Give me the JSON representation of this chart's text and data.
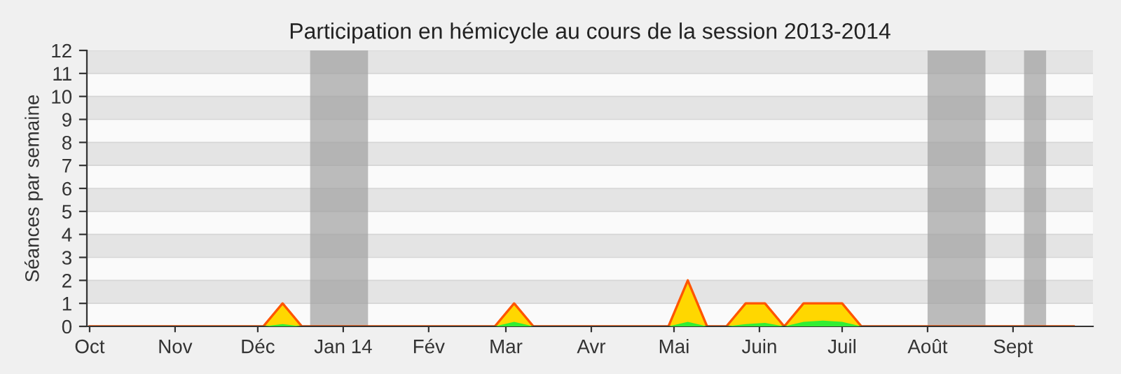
{
  "chart_data": {
    "type": "area",
    "title": "Participation en hémicycle au cours de la session 2013-2014",
    "ylabel": "Séances par semaine",
    "x": [
      "2013-10-01",
      "2013-10-08",
      "2013-10-15",
      "2013-10-22",
      "2013-10-29",
      "2013-11-05",
      "2013-11-12",
      "2013-11-19",
      "2013-11-26",
      "2013-12-03",
      "2013-12-10",
      "2013-12-17",
      "2013-12-24",
      "2013-12-31",
      "2014-01-07",
      "2014-01-14",
      "2014-01-21",
      "2014-01-28",
      "2014-02-04",
      "2014-02-11",
      "2014-02-18",
      "2014-02-25",
      "2014-03-04",
      "2014-03-11",
      "2014-03-18",
      "2014-03-25",
      "2014-04-01",
      "2014-04-08",
      "2014-04-15",
      "2014-04-22",
      "2014-04-29",
      "2014-05-06",
      "2014-05-13",
      "2014-05-20",
      "2014-05-27",
      "2014-06-03",
      "2014-06-10",
      "2014-06-17",
      "2014-06-24",
      "2014-07-01",
      "2014-07-08",
      "2014-07-15",
      "2014-07-22",
      "2014-07-29",
      "2014-08-05",
      "2014-08-12",
      "2014-08-19",
      "2014-08-26",
      "2014-09-02",
      "2014-09-09",
      "2014-09-16",
      "2014-09-23"
    ],
    "series": [
      {
        "color": "#ffd700",
        "values": [
          0,
          0,
          0,
          0,
          0,
          0,
          0,
          0,
          0,
          0,
          1,
          0,
          0,
          0,
          0,
          0,
          0,
          0,
          0,
          0,
          0,
          0,
          1,
          0,
          0,
          0,
          0,
          0,
          0,
          0,
          0,
          2,
          0,
          0,
          1,
          1,
          0,
          1,
          1,
          1,
          0,
          0,
          0,
          0,
          0,
          0,
          0,
          0,
          0,
          0,
          0,
          0
        ]
      },
      {
        "color": "#33ee33",
        "values": [
          0,
          0,
          0,
          0,
          0,
          0,
          0,
          0,
          0,
          0,
          0.1,
          0,
          0,
          0,
          0,
          0,
          0,
          0,
          0,
          0,
          0,
          0,
          0.2,
          0,
          0,
          0,
          0,
          0,
          0,
          0,
          0,
          0.2,
          0,
          0,
          0.1,
          0.15,
          0,
          0.2,
          0.25,
          0.2,
          0,
          0,
          0,
          0,
          0,
          0,
          0,
          0,
          0,
          0,
          0,
          0
        ]
      }
    ],
    "bands": [
      {
        "axis": "x",
        "from": "2013-12-20",
        "to": "2014-01-10",
        "color": "#a0a0a0"
      },
      {
        "axis": "x",
        "from": "2014-08-01",
        "to": "2014-08-22",
        "color": "#a0a0a0"
      },
      {
        "axis": "x",
        "from": "2014-09-05",
        "to": "2014-09-13",
        "color": "#a0a0a0"
      }
    ],
    "xlim": [
      "2013-09-30",
      "2014-09-30"
    ],
    "xticks": [
      {
        "value": "2013-10-01",
        "label": "Oct"
      },
      {
        "value": "2013-11-01",
        "label": "Nov"
      },
      {
        "value": "2013-12-01",
        "label": "Déc"
      },
      {
        "value": "2014-01-01",
        "label": "Jan 14"
      },
      {
        "value": "2014-02-01",
        "label": "Fév"
      },
      {
        "value": "2014-03-01",
        "label": "Mar"
      },
      {
        "value": "2014-04-01",
        "label": "Avr"
      },
      {
        "value": "2014-05-01",
        "label": "Mai"
      },
      {
        "value": "2014-06-01",
        "label": "Juin"
      },
      {
        "value": "2014-07-01",
        "label": "Juil"
      },
      {
        "value": "2014-08-01",
        "label": "Août"
      },
      {
        "value": "2014-09-01",
        "label": "Sept"
      }
    ],
    "ylim": [
      0,
      12
    ],
    "yticks": [
      0,
      1,
      2,
      3,
      4,
      5,
      6,
      7,
      8,
      9,
      10,
      11,
      12
    ],
    "grid": "y",
    "legend": false
  }
}
